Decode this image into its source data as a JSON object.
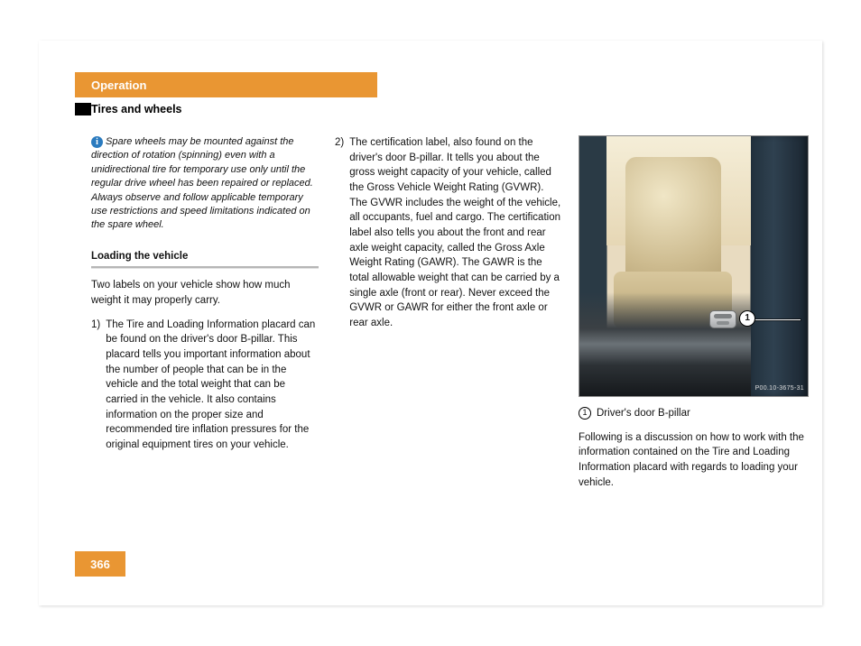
{
  "colors": {
    "accent": "#e99633",
    "info_icon_bg": "#2b7bbf",
    "text": "#000000",
    "page_bg": "#ffffff",
    "rule_top": "#b6b6b6",
    "rule_bottom": "#e0e0e0"
  },
  "typography": {
    "body_font": "Arial, Helvetica, sans-serif",
    "body_size_pt": 9,
    "heading_weight": "bold",
    "italic_for_note": true
  },
  "header": {
    "chapter": "Operation",
    "section": "Tires and wheels"
  },
  "page_number": "366",
  "info_note": {
    "icon_label": "i",
    "text": "Spare wheels may be mounted against the direction of rotation (spinning) even with a unidirectional tire for temporary use only until the regular drive wheel has been repaired or replaced. Always observe and follow applicable temporary use restrictions and speed limitations indicated on the spare wheel."
  },
  "loading_heading": "Loading the vehicle",
  "intro_para": "Two labels on your vehicle show how much weight it may properly carry.",
  "list": [
    {
      "num": "1)",
      "text": "The Tire and Loading Information placard can be found on the driver's door B-pillar. This placard tells you important information about the number of people that can be in the vehicle and the total weight that can be carried in the vehicle. It also contains information on the proper size and recommended tire inflation pressures for the original equipment tires on your vehicle."
    },
    {
      "num": "2)",
      "text": "The certification label, also found on the driver's door B-pillar. It tells you about the gross weight capacity of your vehicle, called the Gross Vehicle Weight Rating (GVWR). The GVWR includes the weight of the vehicle, all occupants, fuel and cargo. The certification label also tells you about the front and rear axle weight capacity, called the Gross Axle Weight Rating (GAWR). The GAWR is the total allowable weight that can be carried by a single axle (front or rear). Never exceed the GVWR or GAWR for either the front axle or rear axle."
    }
  ],
  "figure": {
    "callout_number": "1",
    "image_code": "P00.10-3675-31",
    "caption_badge": "1",
    "caption_text": "Driver's door B-pillar",
    "alt": "Photograph of an open driver-side door showing a tan leather seat and the B-pillar of a dark blue vehicle, with callout (1) pointing to the B-pillar area."
  },
  "closing_para": "Following is a discussion on how to work with the information contained on the Tire and Loading Information placard with regards to loading your vehicle."
}
